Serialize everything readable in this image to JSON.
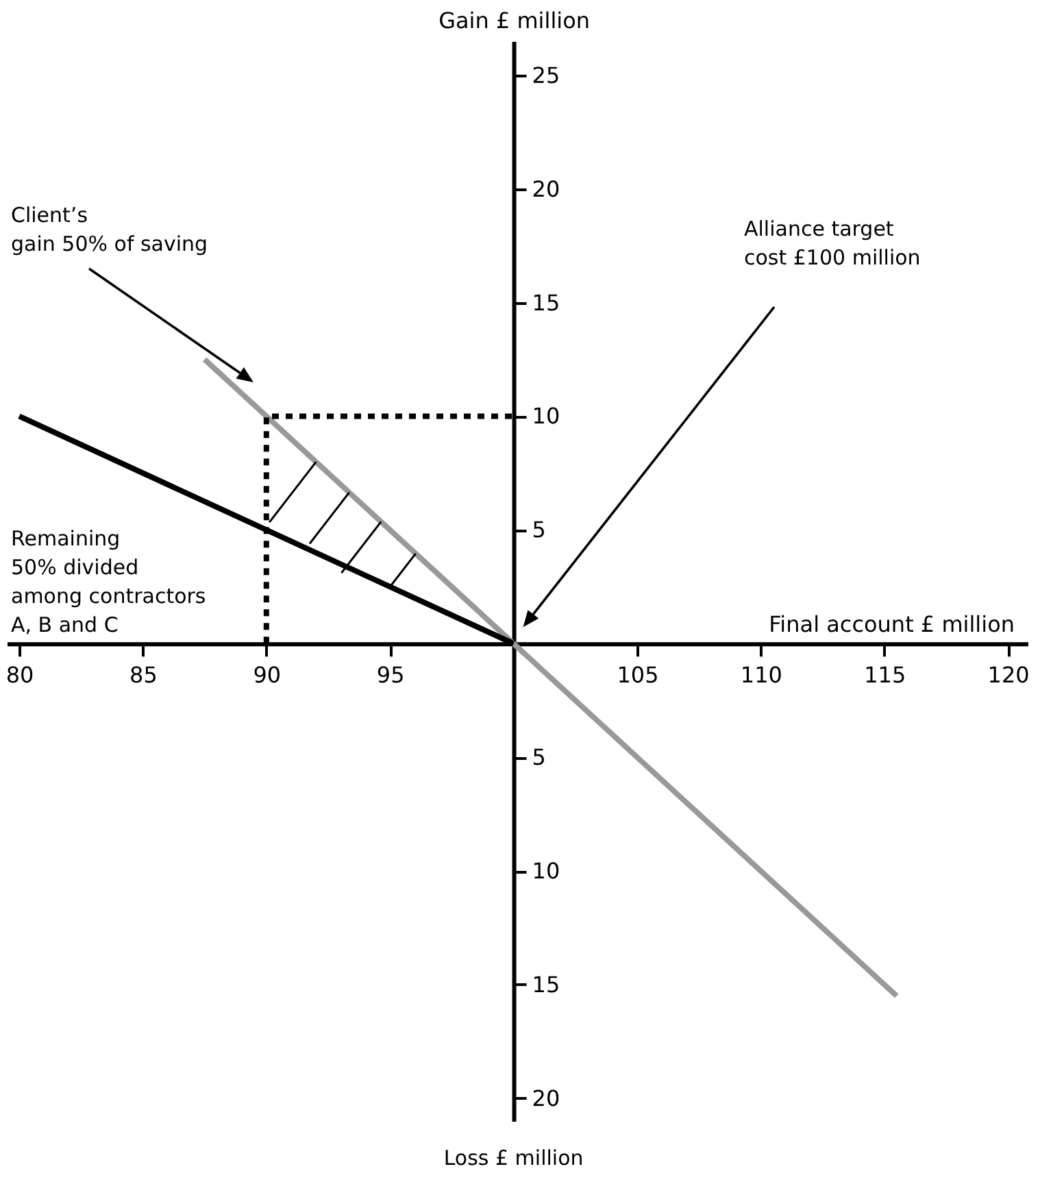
{
  "chart_data": {
    "type": "line",
    "xlabel": "Final account £ million",
    "ylabel": "Gain £ million",
    "xlim": [
      79.5,
      120.8
    ],
    "ylim": [
      -21,
      26.5
    ],
    "xticks": [
      80,
      85,
      90,
      95,
      105,
      110,
      115,
      120
    ],
    "yticks": [
      25,
      20,
      15,
      10,
      5,
      {
        "value": -5,
        "label": "5"
      },
      {
        "value": -10,
        "label": "10"
      },
      {
        "value": -15,
        "label": "15"
      },
      {
        "value": -20,
        "label": "20"
      }
    ],
    "series": [
      {
        "type": "line",
        "color": "#999999",
        "x": [
          87.5,
          115.5
        ],
        "values": [
          12.5,
          -15.5
        ]
      },
      {
        "type": "line",
        "color": "#000000",
        "x": [
          80,
          100
        ],
        "values": [
          10,
          0
        ]
      },
      {
        "type": "line",
        "color": "#000000",
        "line_style": "dotted",
        "x": [
          90,
          90,
          100
        ],
        "values": [
          0,
          10,
          10
        ]
      }
    ],
    "annotations": [
      "Client’s\ngain 50% of saving",
      "Remaining\n50% divided\namong contractors\nA, B and C",
      "Alliance target\ncost £100 million",
      "Loss £ million"
    ],
    "grid": false,
    "marker": "none"
  }
}
